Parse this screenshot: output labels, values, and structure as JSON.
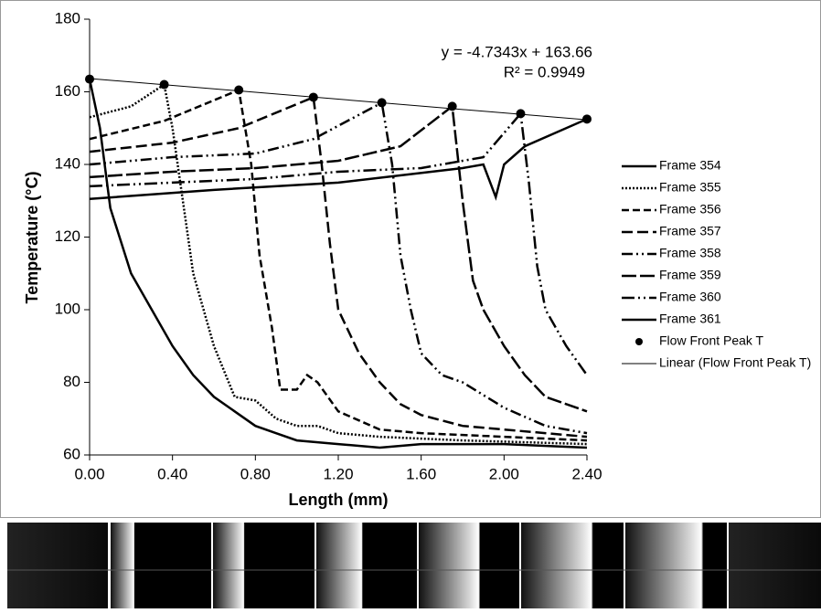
{
  "chart_data": {
    "type": "line",
    "xlabel": "Length (mm)",
    "ylabel": "Temperature (°C)",
    "xlim": [
      0,
      2.4
    ],
    "ylim": [
      60,
      180
    ],
    "xticks": [
      {
        "value": 0,
        "label": "0.00"
      },
      {
        "value": 0.4,
        "label": "0.40"
      },
      {
        "value": 0.8,
        "label": "0.80"
      },
      {
        "value": 1.2,
        "label": "1.20"
      },
      {
        "value": 1.6,
        "label": "1.60"
      },
      {
        "value": 2.0,
        "label": "2.00"
      },
      {
        "value": 2.4,
        "label": "2.40"
      }
    ],
    "yticks": [
      60,
      80,
      100,
      120,
      140,
      160,
      180
    ],
    "annotations": [
      "y = -4.7343x + 163.66",
      "R² = 0.9949"
    ],
    "series": [
      {
        "name": "Frame 354",
        "color": "#000000",
        "dash": "none",
        "x": [
          0,
          0.05,
          0.1,
          0.2,
          0.3,
          0.4,
          0.5,
          0.6,
          0.7,
          0.8,
          0.9,
          1.0,
          1.2,
          1.4,
          1.6,
          2.0,
          2.4
        ],
        "values": [
          163.5,
          150,
          128,
          110,
          100,
          90,
          82,
          76,
          72,
          68,
          66,
          64,
          63,
          62,
          63,
          63,
          62
        ]
      },
      {
        "name": "Frame 355",
        "color": "#000000",
        "dash": "2,2",
        "x": [
          0,
          0.2,
          0.36,
          0.4,
          0.45,
          0.5,
          0.6,
          0.7,
          0.8,
          0.9,
          1.0,
          1.1,
          1.2,
          1.4,
          1.8,
          2.4
        ],
        "values": [
          153,
          156,
          162,
          150,
          130,
          110,
          90,
          76,
          75,
          70,
          68,
          68,
          66,
          65,
          64,
          63
        ]
      },
      {
        "name": "Frame 356",
        "color": "#000000",
        "dash": "8,4",
        "x": [
          0,
          0.36,
          0.72,
          0.78,
          0.82,
          0.88,
          0.92,
          1.0,
          1.05,
          1.1,
          1.2,
          1.4,
          1.6,
          2.0,
          2.4
        ],
        "values": [
          147,
          152,
          160.5,
          140,
          115,
          95,
          78,
          78,
          82,
          80,
          72,
          67,
          66,
          65,
          64
        ]
      },
      {
        "name": "Frame 357",
        "color": "#000000",
        "dash": "12,5",
        "x": [
          0,
          0.4,
          0.72,
          1.08,
          1.12,
          1.16,
          1.2,
          1.3,
          1.4,
          1.5,
          1.6,
          1.8,
          2.0,
          2.4
        ],
        "values": [
          143.5,
          146,
          150,
          158.5,
          140,
          118,
          100,
          88,
          80,
          74,
          71,
          68,
          67,
          65
        ]
      },
      {
        "name": "Frame 358",
        "color": "#000000",
        "dash": "12,4,2,4,2,4",
        "x": [
          0,
          0.4,
          0.8,
          1.08,
          1.41,
          1.46,
          1.5,
          1.55,
          1.6,
          1.7,
          1.8,
          2.0,
          2.2,
          2.4
        ],
        "values": [
          140,
          142,
          143,
          147,
          157,
          140,
          115,
          100,
          88,
          82,
          80,
          73,
          68,
          66
        ]
      },
      {
        "name": "Frame 359",
        "color": "#000000",
        "dash": "16,4",
        "x": [
          0,
          0.4,
          0.8,
          1.2,
          1.5,
          1.75,
          1.8,
          1.85,
          1.9,
          2.0,
          2.1,
          2.2,
          2.4
        ],
        "values": [
          136.5,
          138,
          139,
          141,
          145,
          156,
          130,
          108,
          100,
          90,
          82,
          76,
          72
        ]
      },
      {
        "name": "Frame 360",
        "color": "#000000",
        "dash": "14,4,2,4,2,4",
        "x": [
          0,
          0.4,
          0.8,
          1.2,
          1.6,
          1.9,
          2.08,
          2.12,
          2.16,
          2.2,
          2.3,
          2.4
        ],
        "values": [
          134,
          135,
          136,
          138,
          139,
          142,
          154,
          135,
          112,
          100,
          90,
          82
        ]
      },
      {
        "name": "Frame 361",
        "color": "#000000",
        "dash": "none",
        "x": [
          0,
          0.6,
          1.2,
          1.8,
          1.9,
          1.96,
          2.0,
          2.1,
          2.4
        ],
        "values": [
          130.5,
          133,
          135,
          139,
          140,
          131,
          140,
          145,
          152.5
        ]
      },
      {
        "name": "Flow Front Peak T",
        "color": "#000000",
        "marker": "circle",
        "x": [
          0,
          0.36,
          0.72,
          1.08,
          1.41,
          1.75,
          2.08,
          2.4
        ],
        "values": [
          163.5,
          162,
          160.5,
          158.5,
          157,
          156,
          154,
          152.5
        ]
      },
      {
        "name": "Linear (Flow Front Peak T)",
        "color": "#000000",
        "thin": true,
        "x": [
          0,
          2.4
        ],
        "values": [
          163.66,
          152.3
        ]
      }
    ]
  }
}
